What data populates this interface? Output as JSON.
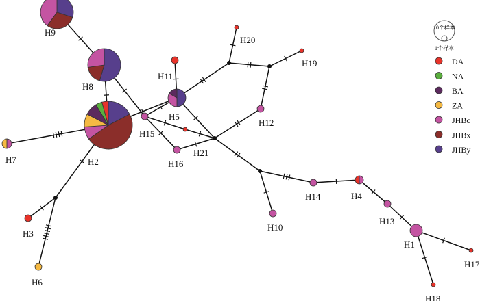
{
  "legend": {
    "size_large": "10个样本",
    "size_small": "1个样本",
    "groups": [
      {
        "name": "DA",
        "color": "#e8332a"
      },
      {
        "name": "NA",
        "color": "#5aae3e"
      },
      {
        "name": "BA",
        "color": "#5c2a5e"
      },
      {
        "name": "ZA",
        "color": "#f5b942"
      },
      {
        "name": "JHBc",
        "color": "#c454a2"
      },
      {
        "name": "JHBx",
        "color": "#8b2e2a"
      },
      {
        "name": "JHBy",
        "color": "#573f8c"
      }
    ]
  },
  "haplotypes": [
    {
      "id": "H1",
      "label": "H1",
      "counts": {
        "JHBc": 3
      }
    },
    {
      "id": "H2",
      "label": "H2",
      "counts": {
        "JHBy": 4,
        "JHBx": 11,
        "JHBc": 2,
        "ZA": 2,
        "BA": 2,
        "NA": 1,
        "DA": 1
      }
    },
    {
      "id": "H3",
      "label": "H3",
      "counts": {
        "DA": 1
      }
    },
    {
      "id": "H4",
      "label": "H4",
      "counts": {
        "JHBc": 1,
        "DA": 1
      }
    },
    {
      "id": "H5",
      "label": "H5",
      "counts": {
        "JHBy": 3,
        "JHBc": 2,
        "BA": 1
      }
    },
    {
      "id": "H6",
      "label": "H6",
      "counts": {
        "ZA": 1
      }
    },
    {
      "id": "H7",
      "label": "H7",
      "counts": {
        "JHBc": 1,
        "ZA": 1
      }
    },
    {
      "id": "H8",
      "label": "H8",
      "counts": {
        "JHBy": 6,
        "JHBx": 2,
        "JHBc": 3
      }
    },
    {
      "id": "H9",
      "label": "H9",
      "counts": {
        "JHBy": 3,
        "JHBx": 3,
        "JHBc": 4
      }
    },
    {
      "id": "H10",
      "label": "H10",
      "counts": {
        "JHBc": 1
      }
    },
    {
      "id": "H11",
      "label": "H11",
      "counts": {
        "DA": 1
      }
    },
    {
      "id": "H12",
      "label": "H12",
      "counts": {
        "JHBc": 1
      }
    },
    {
      "id": "H13",
      "label": "H13",
      "counts": {
        "JHBc": 1
      }
    },
    {
      "id": "H14",
      "label": "H14",
      "counts": {
        "JHBc": 1
      }
    },
    {
      "id": "H15",
      "label": "H15",
      "counts": {
        "JHBc": 1
      }
    },
    {
      "id": "H16",
      "label": "H16",
      "counts": {
        "JHBc": 1
      }
    },
    {
      "id": "H17",
      "label": "H17",
      "counts": {
        "DA": 1
      }
    },
    {
      "id": "H18",
      "label": "H18",
      "counts": {
        "DA": 1
      }
    },
    {
      "id": "H19",
      "label": "H19",
      "counts": {
        "DA": 1
      }
    },
    {
      "id": "H20",
      "label": "H20",
      "counts": {
        "DA": 1
      }
    },
    {
      "id": "H21",
      "label": "H21",
      "counts": {
        "DA": 1
      }
    }
  ],
  "median_vectors": [
    "mv1",
    "mv2",
    "mv3",
    "mv4",
    "mv5"
  ],
  "edges": [
    {
      "from": "H9",
      "to": "H8",
      "mutations": 1
    },
    {
      "from": "H8",
      "to": "H2",
      "mutations": 1
    },
    {
      "from": "H8",
      "to": "H15",
      "mutations": 1
    },
    {
      "from": "H15",
      "to": "H16",
      "mutations": 1
    },
    {
      "from": "H2",
      "to": "H5",
      "mutations": 1
    },
    {
      "from": "H15",
      "to": "H5",
      "mutations": 1
    },
    {
      "from": "H5",
      "to": "H11",
      "mutations": 1
    },
    {
      "from": "H5",
      "to": "mv1",
      "mutations": 1
    },
    {
      "from": "H5",
      "to": "mv2",
      "mutations": 2
    },
    {
      "from": "H15",
      "to": "H21",
      "mutations": 1
    },
    {
      "from": "H21",
      "to": "mv1",
      "mutations": 1
    },
    {
      "from": "H16",
      "to": "mv1",
      "mutations": 1
    },
    {
      "from": "H2",
      "to": "H7",
      "mutations": 4
    },
    {
      "from": "H2",
      "to": "mv5",
      "mutations": 1
    },
    {
      "from": "mv5",
      "to": "H3",
      "mutations": 1
    },
    {
      "from": "mv5",
      "to": "H6",
      "mutations": 6
    },
    {
      "from": "mv1",
      "to": "H12",
      "mutations": 2
    },
    {
      "from": "H12",
      "to": "mv3",
      "mutations": 2
    },
    {
      "from": "mv3",
      "to": "mv2",
      "mutations": 2
    },
    {
      "from": "mv2",
      "to": "H20",
      "mutations": 1
    },
    {
      "from": "mv3",
      "to": "H19",
      "mutations": 1
    },
    {
      "from": "mv1",
      "to": "mv4",
      "mutations": 2
    },
    {
      "from": "mv4",
      "to": "H10",
      "mutations": 1
    },
    {
      "from": "mv4",
      "to": "H14",
      "mutations": 3
    },
    {
      "from": "H14",
      "to": "H4",
      "mutations": 1
    },
    {
      "from": "H4",
      "to": "H13",
      "mutations": 1
    },
    {
      "from": "H13",
      "to": "H1",
      "mutations": 1
    },
    {
      "from": "H1",
      "to": "H17",
      "mutations": 1
    },
    {
      "from": "H1",
      "to": "H18",
      "mutations": 1
    }
  ]
}
